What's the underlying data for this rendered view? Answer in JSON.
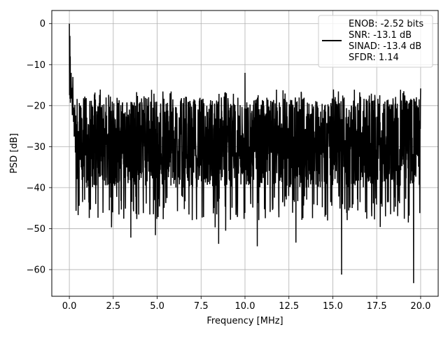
{
  "chart_data": {
    "type": "line",
    "xlabel": "Frequency [MHz]",
    "ylabel": "PSD [dB]",
    "xlim": [
      -1.0,
      21.0
    ],
    "ylim": [
      -66.5,
      3.2
    ],
    "x_ticks": [
      0.0,
      2.5,
      5.0,
      7.5,
      10.0,
      12.5,
      15.0,
      17.5,
      20.0
    ],
    "x_tick_labels": [
      "0.0",
      "2.5",
      "5.0",
      "7.5",
      "10.0",
      "12.5",
      "15.0",
      "17.5",
      "20.0"
    ],
    "y_ticks": [
      0,
      -10,
      -20,
      -30,
      -40,
      -50,
      -60
    ],
    "y_tick_labels": [
      "0",
      "−10",
      "−20",
      "−30",
      "−40",
      "−50",
      "−60"
    ],
    "grid": true,
    "legend_position": "top-right",
    "legend": {
      "lines": [
        "ENOB: -2.52 bits",
        "SNR: -13.1 dB",
        "SINAD: -13.4 dB",
        "SFDR: 1.14"
      ]
    },
    "series": [
      {
        "color": "#000000",
        "points_count": 2048,
        "x_range": [
          0.0,
          20.0
        ],
        "noise_floor_mean_db": -29.0,
        "noise_band_top_db": -18.0,
        "noise_band_bottom_db": -40.0,
        "features": [
          {
            "x": 0.0,
            "y": 0.0
          },
          {
            "x": 0.03,
            "y": -3.0
          },
          {
            "x": 0.05,
            "y": -8.0
          },
          {
            "x": 0.1,
            "y": -12.0
          },
          {
            "x": 0.2,
            "y": -13.0
          },
          {
            "x": 0.5,
            "y": -46.7
          },
          {
            "x": 1.0,
            "y": -40.0
          },
          {
            "x": 1.5,
            "y": -44.0
          },
          {
            "x": 2.4,
            "y": -49.7
          },
          {
            "x": 3.5,
            "y": -52.2
          },
          {
            "x": 4.9,
            "y": -51.6
          },
          {
            "x": 6.4,
            "y": -42.0
          },
          {
            "x": 8.3,
            "y": -49.7
          },
          {
            "x": 8.5,
            "y": -53.7
          },
          {
            "x": 8.9,
            "y": -50.5
          },
          {
            "x": 10.0,
            "y": -12.0
          },
          {
            "x": 10.7,
            "y": -54.3
          },
          {
            "x": 12.9,
            "y": -53.4
          },
          {
            "x": 14.7,
            "y": -48.0
          },
          {
            "x": 15.5,
            "y": -61.2
          },
          {
            "x": 17.7,
            "y": -49.6
          },
          {
            "x": 18.0,
            "y": -47.0
          },
          {
            "x": 19.3,
            "y": -48.5
          },
          {
            "x": 19.6,
            "y": -63.3
          },
          {
            "x": 20.0,
            "y": -15.8
          }
        ]
      }
    ]
  }
}
